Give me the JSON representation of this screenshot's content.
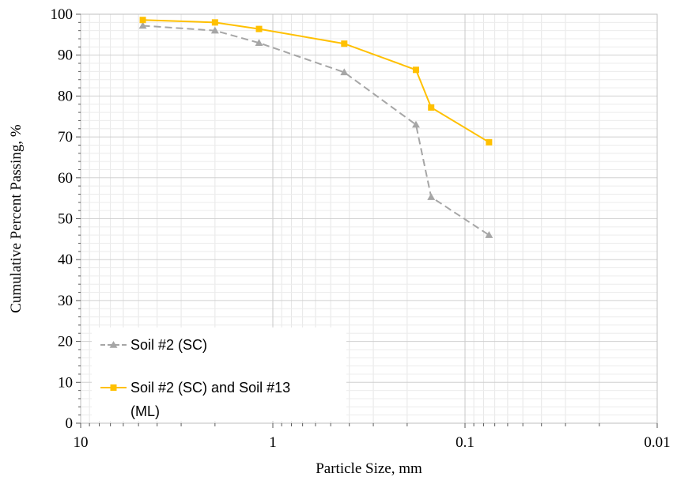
{
  "chart_data": {
    "type": "line",
    "xlabel": "Particle Size, mm",
    "ylabel": "Cumulative Percent Passing, %",
    "x_scale": "log",
    "x_reversed": true,
    "xlim": [
      10,
      0.01
    ],
    "ylim": [
      0,
      100
    ],
    "x_ticks": [
      {
        "value": 10,
        "label": "10"
      },
      {
        "value": 1,
        "label": "1"
      },
      {
        "value": 0.1,
        "label": "0.1"
      },
      {
        "value": 0.01,
        "label": "0.01"
      }
    ],
    "y_ticks": [
      0,
      10,
      20,
      30,
      40,
      50,
      60,
      70,
      80,
      90,
      100
    ],
    "grid": true,
    "legend_position": "bottom-left",
    "series": [
      {
        "name": "Soil #2 (SC)",
        "color": "#a6a6a6",
        "line_style": "dashed",
        "marker": "triangle",
        "points": [
          {
            "x": 4.75,
            "y": 97.2
          },
          {
            "x": 2.0,
            "y": 96.0
          },
          {
            "x": 1.18,
            "y": 93.0
          },
          {
            "x": 0.425,
            "y": 85.8
          },
          {
            "x": 0.18,
            "y": 73.0
          },
          {
            "x": 0.15,
            "y": 55.3
          },
          {
            "x": 0.075,
            "y": 46.0
          }
        ]
      },
      {
        "name": "Soil #2 (SC) and Soil #13 (ML)",
        "legend_lines": [
          "Soil #2 (SC) and Soil #13",
          "(ML)"
        ],
        "color": "#ffc000",
        "line_style": "solid",
        "marker": "square",
        "points": [
          {
            "x": 4.75,
            "y": 98.6
          },
          {
            "x": 2.0,
            "y": 98.0
          },
          {
            "x": 1.18,
            "y": 96.4
          },
          {
            "x": 0.425,
            "y": 92.8
          },
          {
            "x": 0.18,
            "y": 86.4
          },
          {
            "x": 0.15,
            "y": 77.2
          },
          {
            "x": 0.075,
            "y": 68.7
          }
        ]
      }
    ]
  }
}
